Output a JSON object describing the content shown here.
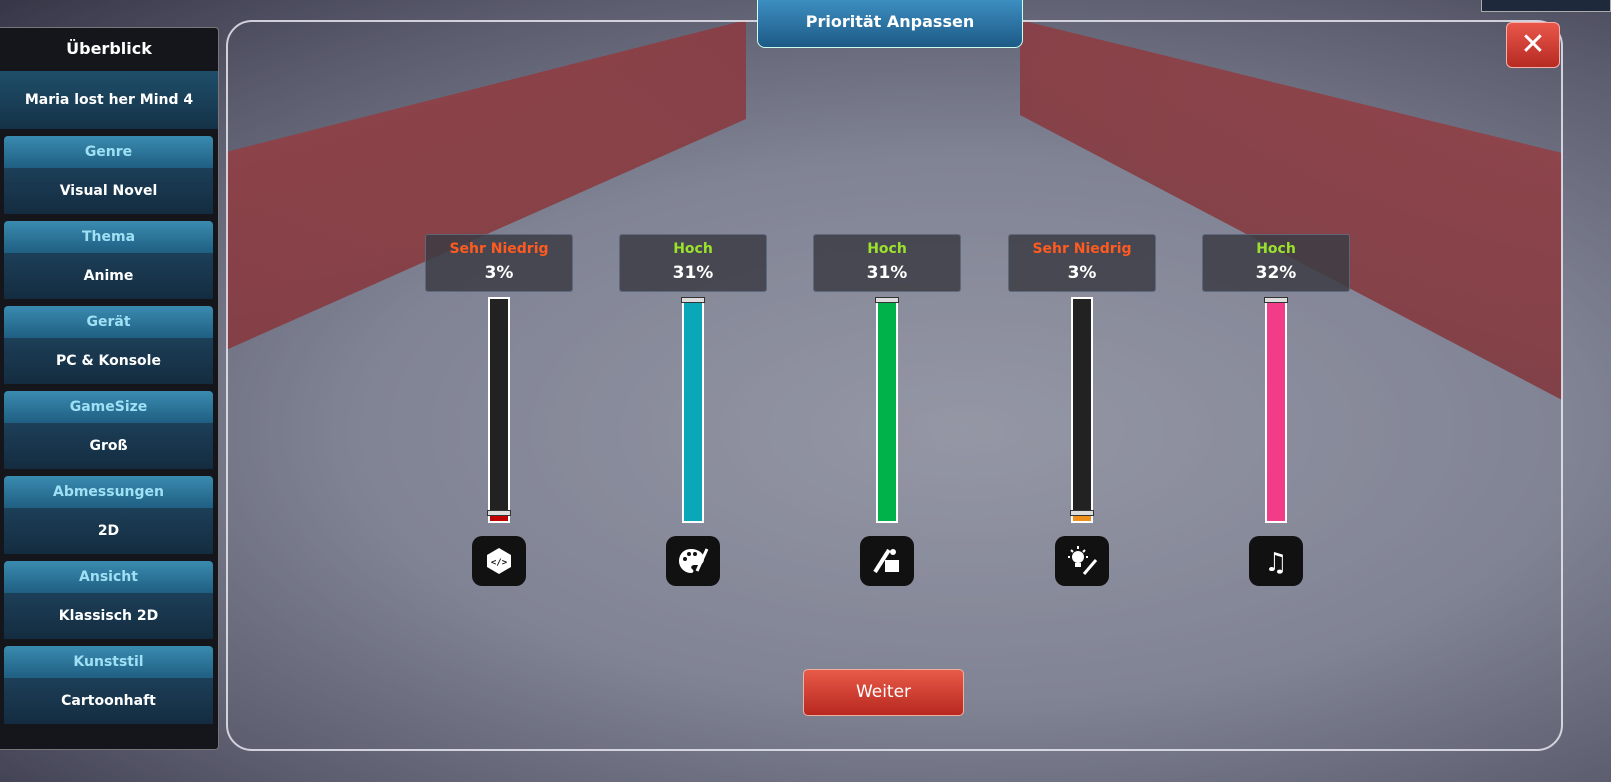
{
  "sidebar": {
    "title": "Überblick",
    "project": "Maria lost her Mind 4",
    "groups": [
      {
        "label": "Genre",
        "value": "Visual Novel"
      },
      {
        "label": "Thema",
        "value": "Anime"
      },
      {
        "label": "Gerät",
        "value": "PC & Konsole"
      },
      {
        "label": "GameSize",
        "value": "Groß"
      },
      {
        "label": "Abmessungen",
        "value": "2D"
      },
      {
        "label": "Ansicht",
        "value": "Klassisch 2D"
      },
      {
        "label": "Kunststil",
        "value": "Cartoonhaft"
      }
    ]
  },
  "header": {
    "title": "Priorität Anpassen",
    "close": "✕"
  },
  "sliders": [
    {
      "level": "Sehr Niedrig",
      "percent": "3%",
      "fill": 0.04,
      "level_color": "#ff5a1f",
      "bar_color": "#c00000",
      "icon": "code-icon"
    },
    {
      "level": "Hoch",
      "percent": "31%",
      "fill": 1.0,
      "level_color": "#9be22c",
      "bar_color": "#0aa7b8",
      "icon": "palette-icon"
    },
    {
      "level": "Hoch",
      "percent": "31%",
      "fill": 1.0,
      "level_color": "#9be22c",
      "bar_color": "#00b24a",
      "icon": "writing-icon"
    },
    {
      "level": "Sehr Niedrig",
      "percent": "3%",
      "fill": 0.04,
      "level_color": "#ff5a1f",
      "bar_color": "#f0901a",
      "icon": "idea-brush-icon"
    },
    {
      "level": "Hoch",
      "percent": "32%",
      "fill": 1.0,
      "level_color": "#9be22c",
      "bar_color": "#f23c8a",
      "icon": "music-icon"
    }
  ],
  "continue_label": "Weiter"
}
